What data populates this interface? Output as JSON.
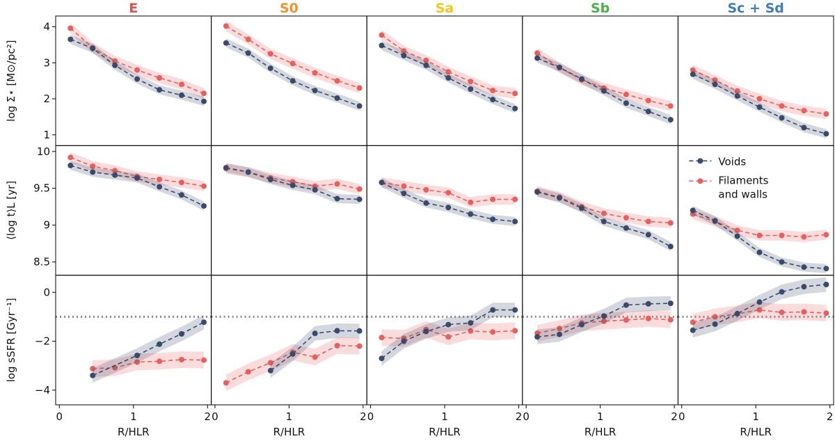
{
  "colors": {
    "voids": "#3b4a6b",
    "filaments": "#e8605e",
    "E": "#d9534f",
    "S0": "#f0922a",
    "Sa": "#f2c81d",
    "Sb": "#4dae48",
    "Sc": "#3e7cc0"
  },
  "column_titles": [
    "E",
    "S0",
    "Sa",
    "Sb",
    "Sc + Sd"
  ],
  "xlabel": "R/HLR",
  "ylabels": [
    "log Σ⋆ [M⊙/pc²]",
    "⟨log t⟩L [yr]",
    "log sSFR [Gyr⁻¹]"
  ],
  "legend": {
    "voids": "Voids",
    "filaments_line1": "Filaments",
    "filaments_line2": "and walls"
  },
  "chart_data": {
    "type": "line",
    "x_ticks": [
      0,
      1,
      2
    ],
    "xlim": [
      -0.05,
      2.05
    ],
    "grid": false,
    "legend_position": "top-right panel (row 2, column 5)",
    "reference_line": {
      "row": 3,
      "y": -1.0,
      "style": "dotted"
    },
    "rows": [
      {
        "quantity": "log Σ⋆",
        "ylim": [
          0.7,
          4.3
        ],
        "yticks": [
          1,
          2,
          3,
          4
        ],
        "panels": [
          {
            "type": "E",
            "voids": {
              "x": [
                0.15,
                0.45,
                0.75,
                1.05,
                1.35,
                1.65,
                1.95
              ],
              "y": [
                3.65,
                3.4,
                2.93,
                2.55,
                2.25,
                2.1,
                1.93
              ]
            },
            "filaments": {
              "x": [
                0.15,
                0.45,
                0.75,
                1.05,
                1.35,
                1.65,
                1.95
              ],
              "y": [
                3.96,
                3.42,
                3.05,
                2.8,
                2.58,
                2.4,
                2.15
              ]
            }
          },
          {
            "type": "S0",
            "voids": {
              "x": [
                0.15,
                0.45,
                0.75,
                1.05,
                1.35,
                1.65,
                1.95
              ],
              "y": [
                3.55,
                3.27,
                2.85,
                2.5,
                2.23,
                2.02,
                1.8
              ]
            },
            "filaments": {
              "x": [
                0.15,
                0.45,
                0.75,
                1.05,
                1.35,
                1.65,
                1.95
              ],
              "y": [
                4.02,
                3.65,
                3.25,
                2.98,
                2.72,
                2.5,
                2.3
              ]
            }
          },
          {
            "type": "Sa",
            "voids": {
              "x": [
                0.15,
                0.45,
                0.75,
                1.05,
                1.35,
                1.65,
                1.95
              ],
              "y": [
                3.48,
                3.2,
                2.93,
                2.58,
                2.27,
                1.98,
                1.73
              ]
            },
            "filaments": {
              "x": [
                0.15,
                0.45,
                0.75,
                1.05,
                1.35,
                1.65,
                1.95
              ],
              "y": [
                3.77,
                3.33,
                3.07,
                2.75,
                2.48,
                2.23,
                2.15
              ]
            }
          },
          {
            "type": "Sb",
            "voids": {
              "x": [
                0.15,
                0.45,
                0.75,
                1.05,
                1.35,
                1.65,
                1.95
              ],
              "y": [
                3.13,
                2.87,
                2.55,
                2.22,
                1.88,
                1.65,
                1.42
              ]
            },
            "filaments": {
              "x": [
                0.15,
                0.45,
                0.75,
                1.05,
                1.35,
                1.65,
                1.95
              ],
              "y": [
                3.27,
                2.87,
                2.53,
                2.3,
                2.12,
                1.95,
                1.8
              ]
            }
          },
          {
            "type": "Sc + Sd",
            "voids": {
              "x": [
                0.15,
                0.45,
                0.75,
                1.05,
                1.35,
                1.65,
                1.95
              ],
              "y": [
                2.68,
                2.4,
                2.08,
                1.77,
                1.47,
                1.2,
                1.03
              ]
            },
            "filaments": {
              "x": [
                0.15,
                0.45,
                0.75,
                1.05,
                1.35,
                1.65,
                1.95
              ],
              "y": [
                2.8,
                2.52,
                2.22,
                2.0,
                1.8,
                1.67,
                1.58
              ]
            }
          }
        ]
      },
      {
        "quantity": "⟨log t⟩L",
        "ylim": [
          8.32,
          10.08
        ],
        "yticks": [
          8.5,
          9.0,
          9.5,
          10.0
        ],
        "panels": [
          {
            "type": "E",
            "voids": {
              "x": [
                0.15,
                0.45,
                0.75,
                1.05,
                1.35,
                1.65,
                1.95
              ],
              "y": [
                9.81,
                9.72,
                9.68,
                9.64,
                9.52,
                9.41,
                9.26
              ]
            },
            "filaments": {
              "x": [
                0.15,
                0.45,
                0.75,
                1.05,
                1.35,
                1.65,
                1.95
              ],
              "y": [
                9.92,
                9.8,
                9.74,
                9.66,
                9.62,
                9.58,
                9.53
              ]
            }
          },
          {
            "type": "S0",
            "voids": {
              "x": [
                0.15,
                0.45,
                0.75,
                1.05,
                1.35,
                1.65,
                1.95
              ],
              "y": [
                9.78,
                9.72,
                9.62,
                9.54,
                9.48,
                9.36,
                9.35
              ]
            },
            "filaments": {
              "x": [
                0.15,
                0.45,
                0.75,
                1.05,
                1.35,
                1.65,
                1.95
              ],
              "y": [
                9.77,
                9.72,
                9.64,
                9.59,
                9.53,
                9.56,
                9.49
              ]
            }
          },
          {
            "type": "Sa",
            "voids": {
              "x": [
                0.15,
                0.45,
                0.75,
                1.05,
                1.35,
                1.65,
                1.95
              ],
              "y": [
                9.58,
                9.43,
                9.3,
                9.24,
                9.15,
                9.08,
                9.05
              ]
            },
            "filaments": {
              "x": [
                0.15,
                0.45,
                0.75,
                1.05,
                1.35,
                1.65,
                1.95
              ],
              "y": [
                9.58,
                9.53,
                9.48,
                9.44,
                9.31,
                9.35,
                9.35
              ]
            }
          },
          {
            "type": "Sb",
            "voids": {
              "x": [
                0.15,
                0.45,
                0.75,
                1.05,
                1.35,
                1.65,
                1.95
              ],
              "y": [
                9.45,
                9.37,
                9.23,
                9.05,
                8.96,
                8.87,
                8.71
              ]
            },
            "filaments": {
              "x": [
                0.15,
                0.45,
                0.75,
                1.05,
                1.35,
                1.65,
                1.95
              ],
              "y": [
                9.46,
                9.38,
                9.25,
                9.16,
                9.1,
                9.05,
                9.03
              ]
            }
          },
          {
            "type": "Sc + Sd",
            "voids": {
              "x": [
                0.15,
                0.45,
                0.75,
                1.05,
                1.35,
                1.65,
                1.95
              ],
              "y": [
                9.2,
                9.06,
                8.85,
                8.63,
                8.5,
                8.43,
                8.41
              ]
            },
            "filaments": {
              "x": [
                0.15,
                0.45,
                0.75,
                1.05,
                1.35,
                1.65,
                1.95
              ],
              "y": [
                9.15,
                9.05,
                8.93,
                8.86,
                8.86,
                8.84,
                8.87
              ]
            }
          }
        ]
      },
      {
        "quantity": "log sSFR",
        "ylim": [
          -4.6,
          0.7
        ],
        "yticks": [
          -4,
          -2,
          0
        ],
        "panels": [
          {
            "type": "E",
            "voids": {
              "x": [
                0.45,
                1.05,
                1.35,
                1.65,
                1.95
              ],
              "y": [
                -3.4,
                -2.58,
                -2.12,
                -1.7,
                -1.22
              ]
            },
            "filaments": {
              "x": [
                0.45,
                0.75,
                1.05,
                1.35,
                1.65,
                1.95
              ],
              "y": [
                -3.12,
                -3.08,
                -2.85,
                -2.82,
                -2.75,
                -2.77
              ]
            }
          },
          {
            "type": "S0",
            "voids": {
              "x": [
                0.75,
                1.05,
                1.35,
                1.65,
                1.95
              ],
              "y": [
                -3.2,
                -2.52,
                -1.68,
                -1.57,
                -1.58
              ]
            },
            "filaments": {
              "x": [
                0.15,
                0.45,
                0.75,
                1.05,
                1.35,
                1.65,
                1.95
              ],
              "y": [
                -3.7,
                -3.25,
                -2.88,
                -2.45,
                -2.65,
                -2.18,
                -2.2
              ]
            }
          },
          {
            "type": "Sa",
            "voids": {
              "x": [
                0.15,
                0.45,
                0.75,
                1.05,
                1.35,
                1.65,
                1.95
              ],
              "y": [
                -2.7,
                -2.0,
                -1.6,
                -1.32,
                -1.25,
                -0.72,
                -0.72
              ]
            },
            "filaments": {
              "x": [
                0.15,
                0.45,
                0.75,
                1.05,
                1.35,
                1.65,
                1.95
              ],
              "y": [
                -1.85,
                -1.88,
                -1.52,
                -1.82,
                -1.58,
                -1.62,
                -1.57
              ]
            }
          },
          {
            "type": "Sb",
            "voids": {
              "x": [
                0.15,
                0.45,
                0.75,
                1.05,
                1.35,
                1.65,
                1.95
              ],
              "y": [
                -1.82,
                -1.72,
                -1.32,
                -0.97,
                -0.52,
                -0.47,
                -0.45
              ]
            },
            "filaments": {
              "x": [
                0.15,
                0.45,
                0.75,
                1.05,
                1.35,
                1.65,
                1.95
              ],
              "y": [
                -1.67,
                -1.48,
                -1.25,
                -1.18,
                -1.13,
                -1.07,
                -1.12
              ]
            }
          },
          {
            "type": "Sc + Sd",
            "voids": {
              "x": [
                0.15,
                0.45,
                0.75,
                1.05,
                1.35,
                1.65,
                1.95
              ],
              "y": [
                -1.55,
                -1.3,
                -0.87,
                -0.4,
                0.02,
                0.23,
                0.32
              ]
            },
            "filaments": {
              "x": [
                0.15,
                0.45,
                0.75,
                1.05,
                1.35,
                1.65,
                1.95
              ],
              "y": [
                -1.22,
                -1.0,
                -0.88,
                -0.72,
                -0.82,
                -0.8,
                -0.85
              ]
            }
          }
        ]
      }
    ]
  }
}
